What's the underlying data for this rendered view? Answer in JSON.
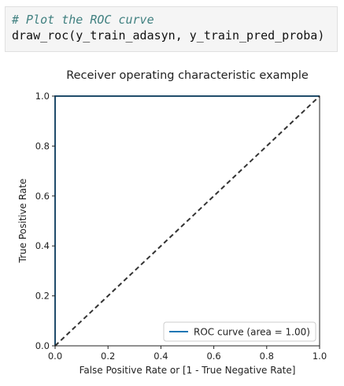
{
  "code": {
    "comment": "# Plot the ROC curve",
    "call": "draw_roc(y_train_adasyn, y_train_pred_proba)"
  },
  "chart_data": {
    "type": "line",
    "title": "Receiver operating characteristic example",
    "xlabel": "False Positive Rate or [1 - True Negative Rate]",
    "ylabel": "True Positive Rate",
    "xlim": [
      0.0,
      1.0
    ],
    "ylim": [
      0.0,
      1.0
    ],
    "xticks": [
      "0.0",
      "0.2",
      "0.4",
      "0.6",
      "0.8",
      "1.0"
    ],
    "yticks": [
      "0.0",
      "0.2",
      "0.4",
      "0.6",
      "0.8",
      "1.0"
    ],
    "grid": false,
    "legend_position": "lower-right",
    "series": [
      {
        "name": "ROC curve (area = 1.00)",
        "color": "#1f77b4",
        "style": "solid",
        "x": [
          0.0,
          0.0,
          1.0
        ],
        "y": [
          0.0,
          1.0,
          1.0
        ]
      },
      {
        "color": "#333333",
        "style": "dashed",
        "x": [
          0.0,
          1.0
        ],
        "y": [
          0.0,
          1.0
        ]
      }
    ]
  }
}
